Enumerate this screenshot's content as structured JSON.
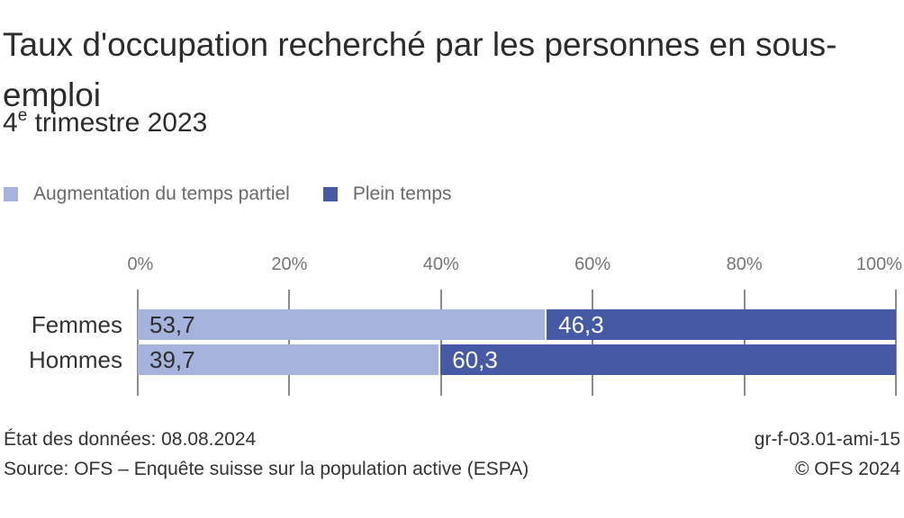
{
  "header": {
    "title": "Taux d'occupation recherché par les personnes en sous-emploi",
    "subtitle": {
      "number": "4",
      "sup": "e",
      "rest": " trimestre 2023"
    },
    "subtitle_text": "4e trimestre 2023"
  },
  "legend": {
    "items": [
      {
        "label": "Augmentation du temps partiel",
        "color": "#a6b3dd"
      },
      {
        "label": "Plein temps",
        "color": "#4659a5"
      }
    ]
  },
  "chart_data": {
    "type": "bar",
    "orientation": "horizontal",
    "stacked": true,
    "title": "Taux d'occupation recherché par les personnes en sous-emploi",
    "subtitle": "4e trimestre 2023",
    "categories": [
      "Femmes",
      "Hommes"
    ],
    "series": [
      {
        "name": "Augmentation du temps partiel",
        "color": "#a6b3dd",
        "values": [
          53.7,
          39.7
        ],
        "value_labels": [
          "53,7",
          "39,7"
        ],
        "value_text_color": "#2e2e2e"
      },
      {
        "name": "Plein temps",
        "color": "#4659a5",
        "values": [
          46.3,
          60.3
        ],
        "value_labels": [
          "46,3",
          "60,3"
        ],
        "value_text_color": "#ffffff"
      }
    ],
    "x_axis": {
      "min": 0,
      "max": 100,
      "unit": "%",
      "tick_labels": [
        "0%",
        "20%",
        "40%",
        "60%",
        "80%",
        "100%"
      ]
    },
    "legend_position": "top-left",
    "grid": "vertical-ticks-only"
  },
  "footer": {
    "data_status": "État des données: 08.08.2024",
    "source": "Source: OFS – Enquête suisse sur la population active (ESPA)",
    "figure_id": "gr-f-03.01-ami-15",
    "copyright": "© OFS 2024"
  },
  "colors": {
    "background": "#ffffff",
    "title_text": "#2c2c2c",
    "legend_text": "#696969",
    "axis_text": "#757575",
    "tick_line": "#8b8b8b",
    "category_text": "#333333",
    "footer_text": "#333333"
  }
}
